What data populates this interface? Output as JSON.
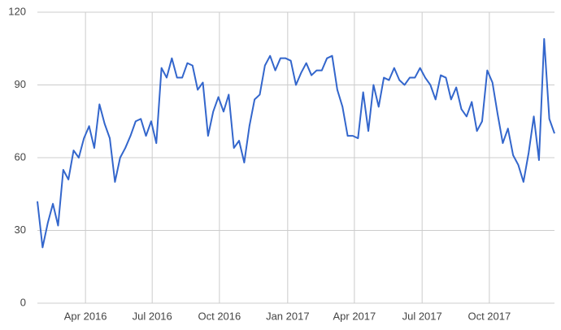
{
  "chart_data": {
    "type": "line",
    "series": [
      {
        "color": "#3366cc",
        "values": [
          42,
          23,
          33,
          41,
          32,
          55,
          51,
          63,
          60,
          68,
          73,
          64,
          82,
          74,
          68,
          50,
          60,
          64,
          69,
          75,
          76,
          69,
          75,
          66,
          97,
          93,
          101,
          93,
          93,
          99,
          98,
          88,
          91,
          69,
          79,
          85,
          79,
          86,
          64,
          67,
          58,
          73,
          84,
          86,
          98,
          102,
          96,
          101,
          101,
          100,
          90,
          95,
          99,
          94,
          96,
          96,
          101,
          102,
          88,
          81,
          69,
          69,
          68,
          87,
          71,
          90,
          81,
          93,
          92,
          97,
          92,
          90,
          93,
          93,
          97,
          93,
          90,
          84,
          94,
          93,
          84,
          89,
          80,
          77,
          83,
          71,
          75,
          96,
          91,
          78,
          66,
          72,
          61,
          57,
          50,
          62,
          77,
          59,
          109,
          76,
          70
        ]
      }
    ],
    "xlim": [
      0,
      100
    ],
    "xticks": [
      {
        "value": 9.3,
        "label": "Apr 2016"
      },
      {
        "value": 22.2,
        "label": "Jul 2016"
      },
      {
        "value": 35.2,
        "label": "Oct 2016"
      },
      {
        "value": 48.4,
        "label": "Jan 2017"
      },
      {
        "value": 61.3,
        "label": "Apr 2017"
      },
      {
        "value": 74.4,
        "label": "Jul 2017"
      },
      {
        "value": 87.4,
        "label": "Oct 2017"
      }
    ],
    "ylim": [
      0,
      120
    ],
    "yticks": [
      0,
      30,
      60,
      90,
      120
    ],
    "grid": true
  }
}
